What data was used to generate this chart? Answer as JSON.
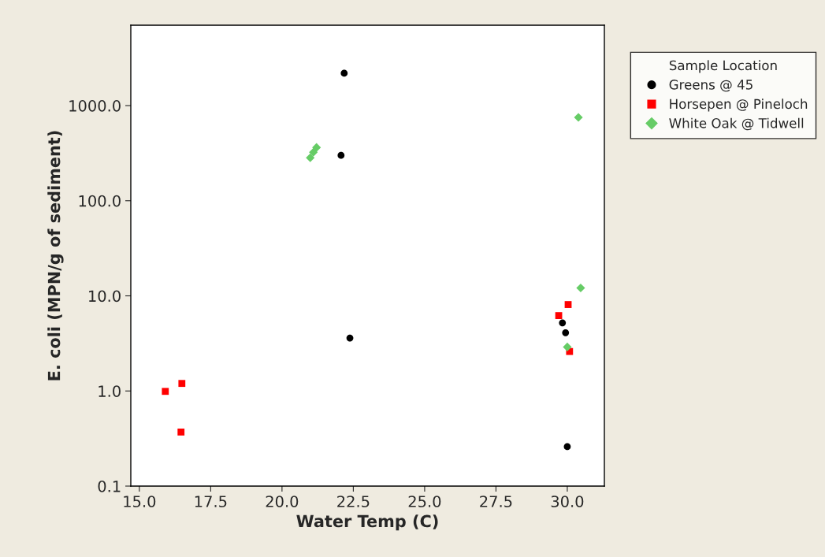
{
  "chart_data": {
    "type": "scatter",
    "xlabel": "Water Temp (C)",
    "ylabel": "E. coli (MPN/g of sediment)",
    "legend_title": "Sample Location",
    "legend": "top right",
    "log": "y",
    "grid": false,
    "xlim": [
      14.7,
      31.3
    ],
    "xticks": [
      {
        "value": 15,
        "label": "15.0"
      },
      {
        "value": 17.5,
        "label": "17.5"
      },
      {
        "value": 20,
        "label": "20.0"
      },
      {
        "value": 22.5,
        "label": "22.5"
      },
      {
        "value": 25,
        "label": "25.0"
      },
      {
        "value": 27.5,
        "label": "27.5"
      },
      {
        "value": 30,
        "label": "30.0"
      }
    ],
    "ylim": [
      0.1,
      7000
    ],
    "yticks": [
      {
        "value": 0.1,
        "label": "0.1"
      },
      {
        "value": 1,
        "label": "1.0"
      },
      {
        "value": 10,
        "label": "10.0"
      },
      {
        "value": 100,
        "label": "100.0"
      },
      {
        "value": 1000,
        "label": "1000.0"
      }
    ],
    "series": [
      {
        "name": "Greens @ 45",
        "color": "#000000",
        "marker": "circle",
        "x": [
          22.18,
          22.07,
          22.38,
          29.83,
          29.94,
          30.0
        ],
        "values": [
          2190,
          300,
          3.6,
          5.2,
          4.1,
          0.26
        ]
      },
      {
        "name": "Horsepen @ Pineloch",
        "color": "#ff0000",
        "marker": "square",
        "x": [
          15.91,
          16.49,
          16.46,
          29.7,
          30.03,
          30.08
        ],
        "values": [
          0.99,
          1.2,
          0.37,
          6.2,
          8.1,
          2.6
        ]
      },
      {
        "name": "White Oak @ Tidwell",
        "color": "#66cc66",
        "marker": "diamond",
        "x": [
          20.99,
          21.1,
          21.21,
          30.39,
          30.47,
          30.0
        ],
        "values": [
          283,
          323,
          363,
          752,
          12.1,
          2.9
        ]
      }
    ]
  }
}
